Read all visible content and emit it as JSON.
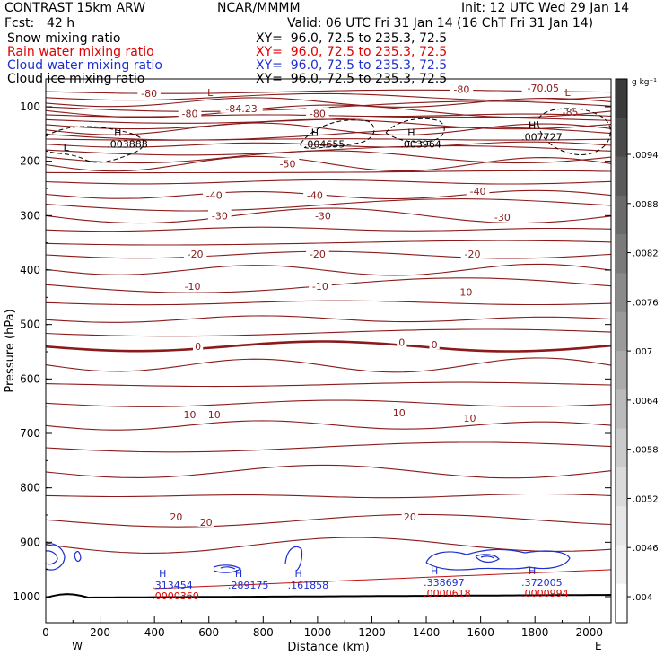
{
  "header": {
    "model": "CONTRAST 15km ARW",
    "center": "NCAR/MMMM",
    "init": "Init: 12 UTC Wed 29 Jan 14",
    "fcst_label": "Fcst:",
    "fcst_value": "42 h",
    "valid": "Valid: 06 UTC Fri 31 Jan 14 (16 ChT Fri 31 Jan 14)",
    "fields": [
      {
        "name": "Snow mixing ratio",
        "xy": "XY=  96.0, 72.5 to 235.3, 72.5",
        "color": "#000000"
      },
      {
        "name": "Rain water mixing ratio",
        "xy": "XY=  96.0, 72.5 to 235.3, 72.5",
        "color": "#e00000"
      },
      {
        "name": "Cloud water mixing ratio",
        "xy": "XY=  96.0, 72.5 to 235.3, 72.5",
        "color": "#1f2fd0"
      },
      {
        "name": "Cloud ice mixing ratio",
        "xy": "XY=  96.0, 72.5 to 235.3, 72.5",
        "color": "#000000"
      }
    ]
  },
  "chart_data": {
    "type": "cross-section",
    "xlabel": "Distance (km)",
    "ylabel": "Pressure (hPa)",
    "xlim": [
      0,
      2080
    ],
    "ylim": [
      1050,
      50
    ],
    "x_ticks": [
      "0",
      "200",
      "400",
      "600",
      "800",
      "1000",
      "1200",
      "1400",
      "1600",
      "1800",
      "2000"
    ],
    "y_ticks": [
      "100",
      "200",
      "300",
      "400",
      "500",
      "600",
      "700",
      "800",
      "900",
      "1000"
    ],
    "x_end_labels": {
      "left": "W",
      "right": "E"
    },
    "colorbar": {
      "unit": "g kg⁻¹",
      "ticks": [
        ".0094",
        ".0088",
        ".0082",
        ".0076",
        ".007",
        ".0064",
        ".0058",
        ".0052",
        ".0046",
        ".004"
      ],
      "colors": [
        "#3a3a3a",
        "#4a4a4a",
        "#5a5a5a",
        "#6a6a6a",
        "#7a7a7a",
        "#8a8a8a",
        "#9a9a9a",
        "#aaaaaa",
        "#bababa",
        "#cacaca",
        "#dadada",
        "#e6e6e6",
        "#f0f0f0",
        "#ffffff"
      ]
    },
    "temperature_labels": [
      {
        "text": "-80",
        "x": 380,
        "p": 75
      },
      {
        "text": "-80",
        "x": 530,
        "p": 112
      },
      {
        "text": "-80",
        "x": 1000,
        "p": 112
      },
      {
        "text": "-80",
        "x": 1530,
        "p": 68
      },
      {
        "text": "-70.05",
        "x": 1830,
        "p": 65
      },
      {
        "text": "-84.23",
        "x": 720,
        "p": 103
      },
      {
        "text": "-50",
        "x": 890,
        "p": 205
      },
      {
        "text": "-40",
        "x": 620,
        "p": 262
      },
      {
        "text": "-40",
        "x": 990,
        "p": 262
      },
      {
        "text": "-40",
        "x": 1590,
        "p": 255
      },
      {
        "text": "-30",
        "x": 640,
        "p": 300
      },
      {
        "text": "-30",
        "x": 1020,
        "p": 300
      },
      {
        "text": "-30",
        "x": 1680,
        "p": 303
      },
      {
        "text": "-20",
        "x": 550,
        "p": 370
      },
      {
        "text": "-20",
        "x": 1000,
        "p": 370
      },
      {
        "text": "-20",
        "x": 1570,
        "p": 370
      },
      {
        "text": "-10",
        "x": 540,
        "p": 430
      },
      {
        "text": "-10",
        "x": 1010,
        "p": 430
      },
      {
        "text": "-10",
        "x": 1540,
        "p": 440
      },
      {
        "text": "0",
        "x": 560,
        "p": 540
      },
      {
        "text": "0",
        "x": 1310,
        "p": 533
      },
      {
        "text": "0",
        "x": 1430,
        "p": 537
      },
      {
        "text": "10",
        "x": 530,
        "p": 665
      },
      {
        "text": "10",
        "x": 620,
        "p": 665
      },
      {
        "text": "10",
        "x": 1300,
        "p": 662
      },
      {
        "text": "10",
        "x": 1560,
        "p": 672
      },
      {
        "text": "20",
        "x": 480,
        "p": 853
      },
      {
        "text": "20",
        "x": 590,
        "p": 863
      },
      {
        "text": "20",
        "x": 1340,
        "p": 853
      }
    ],
    "max_labels": [
      {
        "mark": "L",
        "text": "",
        "x": 605,
        "p": 87,
        "color": "#8b1a1a"
      },
      {
        "mark": "L",
        "text": "",
        "x": 1920,
        "p": 87,
        "color": "#8b1a1a"
      },
      {
        "mark": "",
        "text": "-85",
        "x": 1940,
        "p": 102,
        "color": "#8b1a1a"
      },
      {
        "mark": "H",
        "text": ".003888",
        "x": 265,
        "p": 160,
        "color": "#000000"
      },
      {
        "mark": "H",
        "text": ".004655",
        "x": 990,
        "p": 160,
        "color": "#000000"
      },
      {
        "mark": "H",
        "text": ".003964",
        "x": 1345,
        "p": 160,
        "color": "#000000"
      },
      {
        "mark": "H",
        "text": ".007727",
        "x": 1790,
        "p": 147,
        "color": "#000000"
      },
      {
        "mark": "L",
        "text": "",
        "x": 75,
        "p": 187,
        "color": "#000000"
      },
      {
        "mark": "H",
        "text": ".313454",
        "x": 430,
        "p": 970,
        "color": "#1f2fd0"
      },
      {
        "mark": "H",
        "text": ".289175",
        "x": 710,
        "p": 970,
        "color": "#1f2fd0"
      },
      {
        "mark": "H",
        "text": ".161858",
        "x": 930,
        "p": 970,
        "color": "#1f2fd0"
      },
      {
        "mark": "H",
        "text": ".338697",
        "x": 1430,
        "p": 965,
        "color": "#1f2fd0"
      },
      {
        "mark": "H",
        "text": ".372005",
        "x": 1790,
        "p": 965,
        "color": "#1f2fd0"
      },
      {
        "mark": "",
        "text": ".0000360",
        "x": 430,
        "p": 990,
        "color": "#e00000"
      },
      {
        "mark": "",
        "text": ".0000618",
        "x": 1430,
        "p": 985,
        "color": "#e00000"
      },
      {
        "mark": "",
        "text": ".0000994",
        "x": 1790,
        "p": 985,
        "color": "#e00000"
      }
    ]
  }
}
